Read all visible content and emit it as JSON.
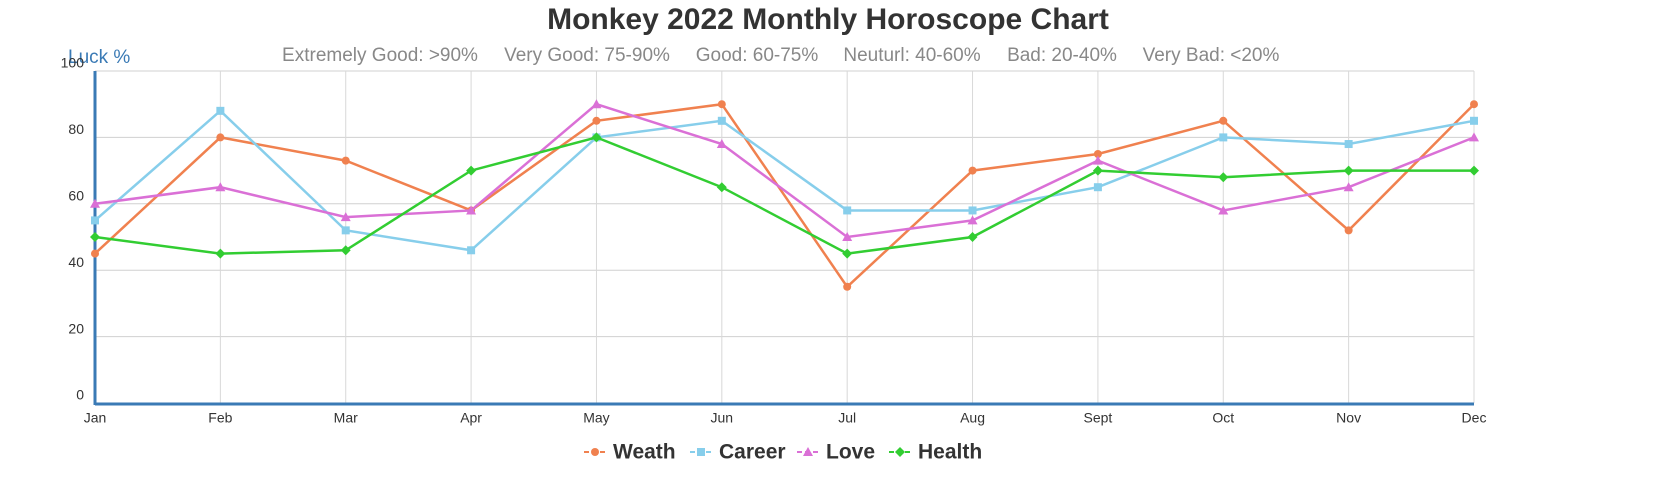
{
  "chart_data": {
    "type": "line",
    "title": "Monkey 2022 Monthly Horoscope Chart",
    "y_label": "Luck %",
    "annotations": [
      "Extremely Good: >90%",
      "Very Good: 75-90%",
      "Good: 60-75%",
      "Neuturl: 40-60%",
      "Bad: 20-40%",
      "Very Bad: <20%"
    ],
    "categories": [
      "Jan",
      "Feb",
      "Mar",
      "Apr",
      "May",
      "Jun",
      "Jul",
      "Aug",
      "Sept",
      "Oct",
      "Nov",
      "Dec"
    ],
    "series": [
      {
        "name": "Weath",
        "color": "#f0814f",
        "marker": "circle",
        "values": [
          45,
          80,
          73,
          58,
          85,
          90,
          35,
          70,
          75,
          85,
          52,
          90
        ]
      },
      {
        "name": "Career",
        "color": "#87ceeb",
        "marker": "square",
        "values": [
          55,
          88,
          52,
          46,
          80,
          85,
          58,
          58,
          65,
          80,
          78,
          85
        ]
      },
      {
        "name": "Love",
        "color": "#da70d6",
        "marker": "triangle",
        "values": [
          60,
          65,
          56,
          58,
          90,
          78,
          50,
          55,
          73,
          58,
          65,
          80
        ]
      },
      {
        "name": "Health",
        "color": "#32cd32",
        "marker": "diamond",
        "values": [
          50,
          45,
          46,
          70,
          80,
          65,
          45,
          50,
          70,
          68,
          70,
          70
        ]
      }
    ],
    "ylim": [
      0,
      100
    ],
    "yticks": [
      0,
      20,
      40,
      60,
      80,
      100
    ],
    "grid": true,
    "legend": "bottom"
  }
}
